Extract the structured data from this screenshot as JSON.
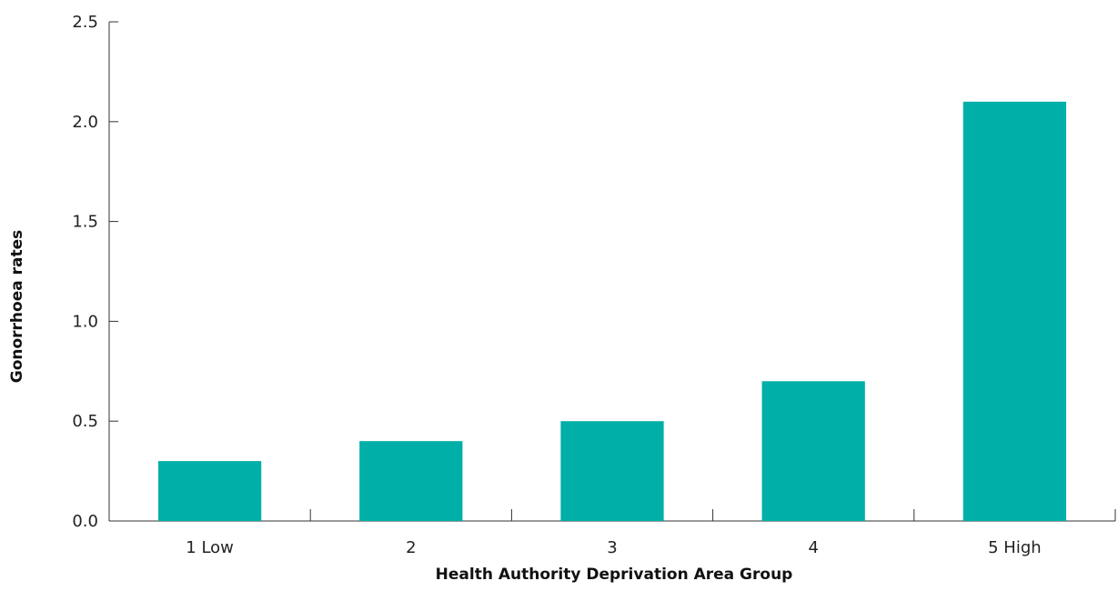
{
  "chart_data": {
    "type": "bar",
    "categories": [
      "1 Low",
      "2",
      "3",
      "4",
      "5 High"
    ],
    "values": [
      0.3,
      0.4,
      0.5,
      0.7,
      2.1
    ],
    "xlabel": "Health Authority Deprivation Area Group",
    "ylabel": "Gonorrhoea rates",
    "ylim": [
      0,
      2.5
    ],
    "yticks": [
      "0.0",
      "0.5",
      "1.0",
      "1.5",
      "2.0",
      "2.5"
    ],
    "bar_color": "#00AFA8",
    "grid": false,
    "legend": "none"
  }
}
